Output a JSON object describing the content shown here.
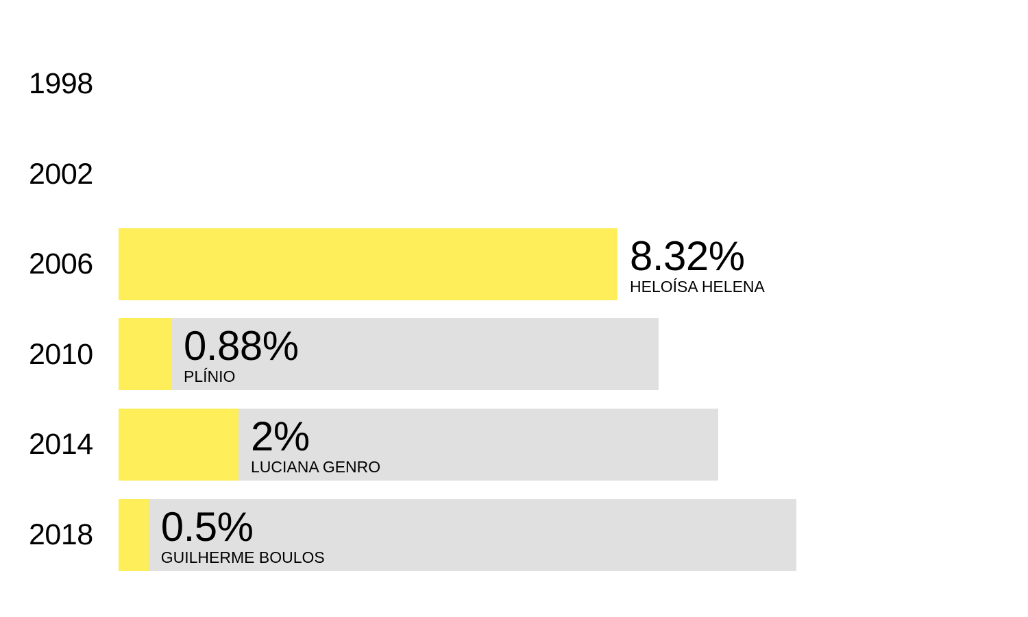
{
  "chart_data": {
    "type": "bar",
    "orientation": "horizontal",
    "colors": {
      "value_fill": "#fdee5a",
      "track": "#e0e0e0"
    },
    "rows": [
      {
        "year": "1998",
        "value": null,
        "value_label": "",
        "candidate": "",
        "total": null
      },
      {
        "year": "2002",
        "value": null,
        "value_label": "",
        "candidate": "",
        "total": null
      },
      {
        "year": "2006",
        "value": 8.32,
        "value_label": "8.32%",
        "candidate": "HELOÍSA HELENA",
        "total": 8
      },
      {
        "year": "2010",
        "value": 0.88,
        "value_label": "0.88%",
        "candidate": "PLÍNIO",
        "total": 9
      },
      {
        "year": "2014",
        "value": 2,
        "value_label": "2%",
        "candidate": "LUCIANA GENRO",
        "total": 10
      },
      {
        "year": "2018",
        "value": 0.5,
        "value_label": "0.5%",
        "candidate": "GUILHERME BOULOS",
        "total": 11.3
      }
    ]
  }
}
